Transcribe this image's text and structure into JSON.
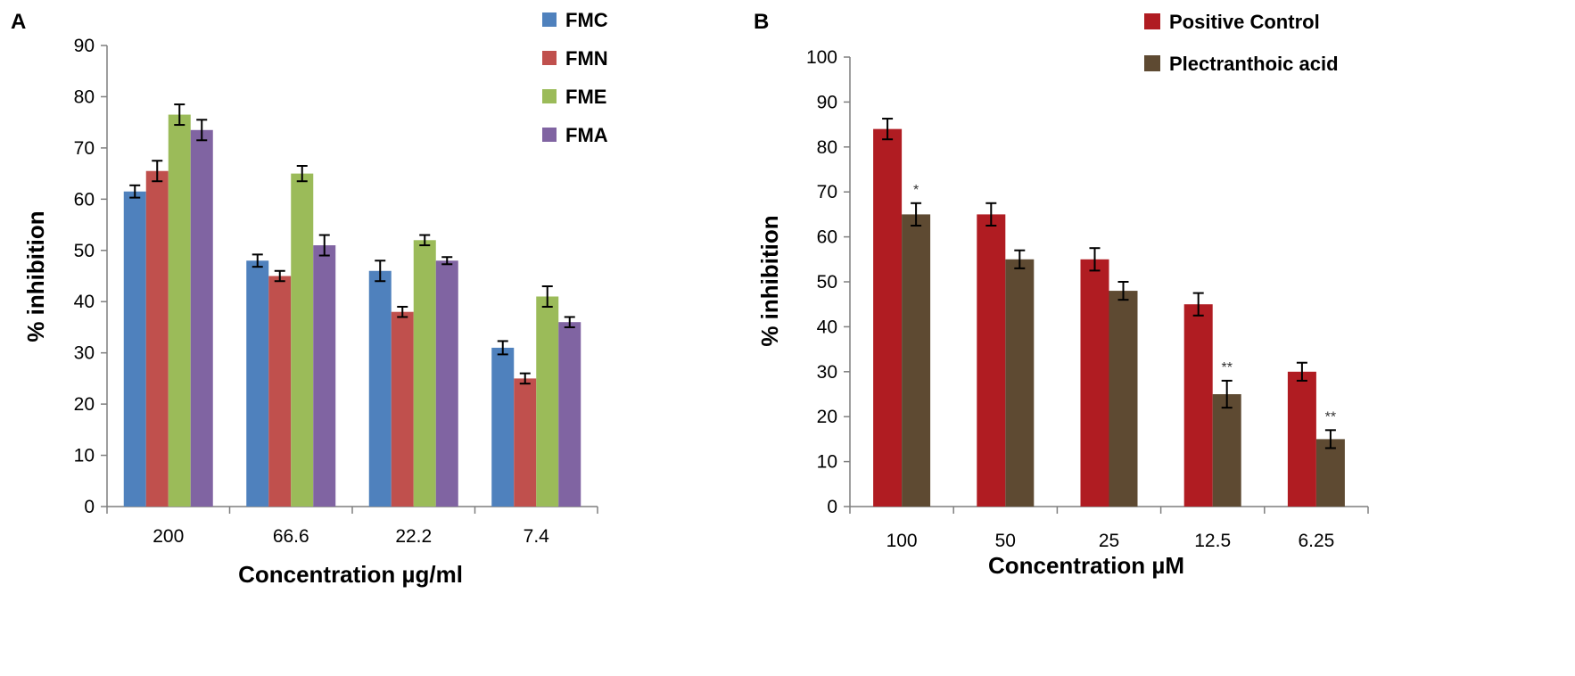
{
  "chart_data": [
    {
      "panel": "A",
      "type": "bar",
      "title": "",
      "xlabel": "Concentration µg/ml",
      "ylabel": "% inhibition",
      "categories": [
        "200",
        "66.6",
        "22.2",
        "7.4"
      ],
      "ylim": [
        0,
        90
      ],
      "yticks": [
        0,
        10,
        20,
        30,
        40,
        50,
        60,
        70,
        80,
        90
      ],
      "grid": false,
      "legend_position": "top-right",
      "series": [
        {
          "name": "FMC",
          "color": "#4f81bd",
          "values": [
            61.5,
            48,
            46,
            31
          ],
          "errors": [
            1.2,
            1.2,
            2,
            1.3
          ]
        },
        {
          "name": "FMN",
          "color": "#c0504d",
          "values": [
            65.5,
            45,
            38,
            25
          ],
          "errors": [
            2,
            1,
            1,
            1
          ]
        },
        {
          "name": "FME",
          "color": "#9bbb59",
          "values": [
            76.5,
            65,
            52,
            41
          ],
          "errors": [
            2,
            1.5,
            1,
            2
          ]
        },
        {
          "name": "FMA",
          "color": "#8064a2",
          "values": [
            73.5,
            51,
            48,
            36
          ],
          "errors": [
            2,
            2,
            0.7,
            1
          ]
        }
      ],
      "annotations": []
    },
    {
      "panel": "B",
      "type": "bar",
      "title": "",
      "xlabel": "Concentration µM",
      "ylabel": "% inhibition",
      "categories": [
        "100",
        "50",
        "25",
        "12.5",
        "6.25"
      ],
      "ylim": [
        0,
        100
      ],
      "yticks": [
        0,
        10,
        20,
        30,
        40,
        50,
        60,
        70,
        80,
        90,
        100
      ],
      "grid": false,
      "legend_position": "top-right",
      "series": [
        {
          "name": "Positive Control",
          "color": "#b01c22",
          "values": [
            84,
            65,
            55,
            45,
            30
          ],
          "errors": [
            2.3,
            2.5,
            2.5,
            2.5,
            2
          ]
        },
        {
          "name": "Plectranthoic acid",
          "color": "#5e4a32",
          "values": [
            65,
            55,
            48,
            25,
            15
          ],
          "errors": [
            2.5,
            2,
            2,
            3,
            2
          ]
        }
      ],
      "annotations": [
        {
          "series": "Plectranthoic acid",
          "category": "100",
          "label": "*"
        },
        {
          "series": "Plectranthoic acid",
          "category": "12.5",
          "label": "**"
        },
        {
          "series": "Plectranthoic acid",
          "category": "6.25",
          "label": "**"
        }
      ]
    }
  ]
}
